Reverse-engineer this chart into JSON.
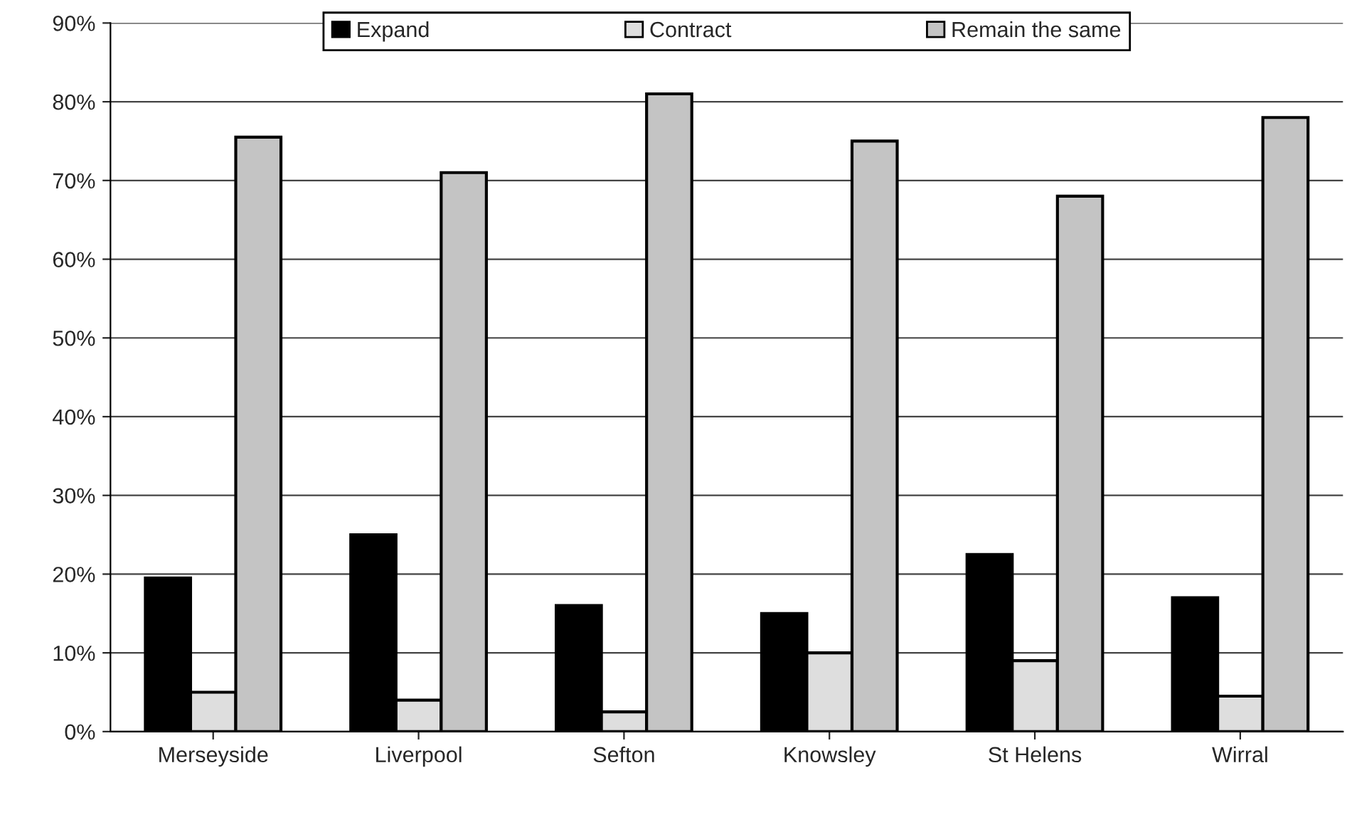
{
  "chart_data": {
    "type": "bar",
    "categories": [
      "Merseyside",
      "Liverpool",
      "Sefton",
      "Knowsley",
      "St Helens",
      "Wirral"
    ],
    "series": [
      {
        "name": "Expand",
        "color": "#000000",
        "values": [
          19.5,
          25,
          16,
          15,
          22.5,
          17
        ]
      },
      {
        "name": "Contract",
        "color": "#dedede",
        "values": [
          5,
          4,
          2.5,
          10,
          9,
          4.5
        ]
      },
      {
        "name": "Remain the same",
        "color": "#c4c4c4",
        "values": [
          75.5,
          71,
          81,
          75,
          68,
          78
        ]
      }
    ],
    "ylim": [
      0,
      90
    ],
    "yticks": [
      {
        "value": 0,
        "label": "0%"
      },
      {
        "value": 10,
        "label": "10%"
      },
      {
        "value": 20,
        "label": "20%"
      },
      {
        "value": 30,
        "label": "30%"
      },
      {
        "value": 40,
        "label": "40%"
      },
      {
        "value": 50,
        "label": "50%"
      },
      {
        "value": 60,
        "label": "60%"
      },
      {
        "value": 70,
        "label": "70%"
      },
      {
        "value": 80,
        "label": "80%"
      },
      {
        "value": 90,
        "label": "90%"
      }
    ],
    "grid": "y",
    "legend": "top"
  }
}
